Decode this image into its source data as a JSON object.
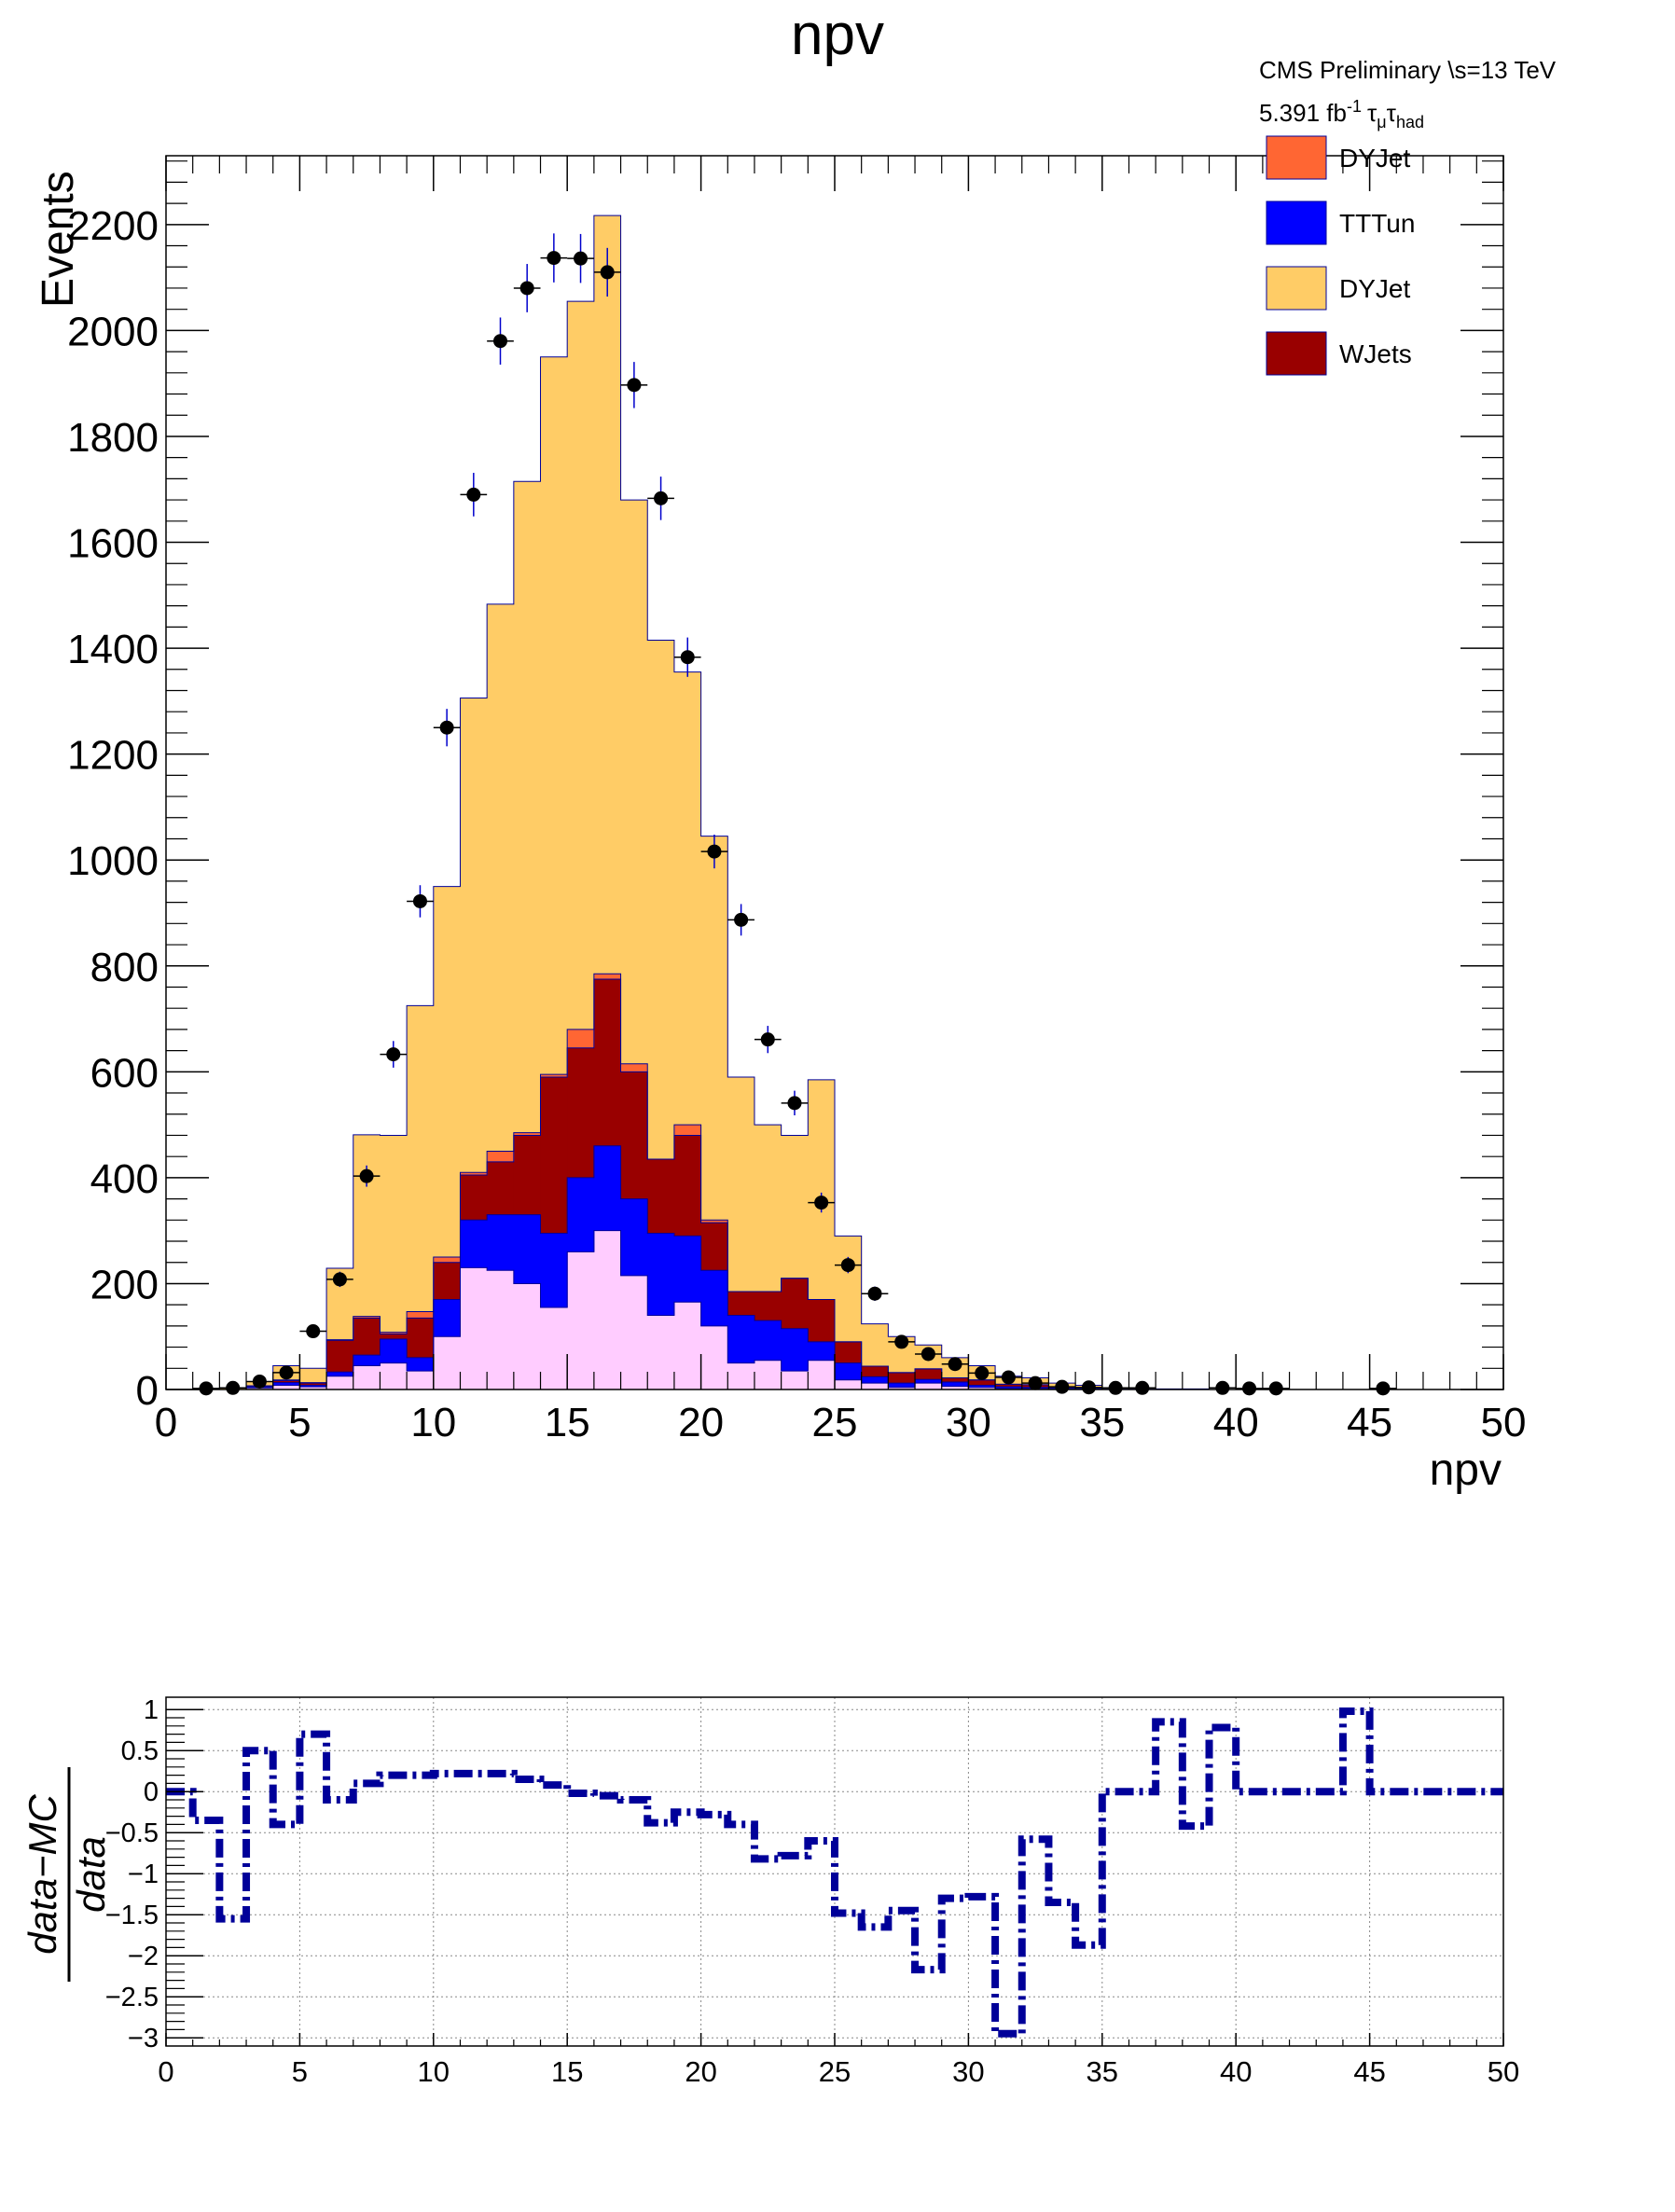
{
  "title": "npv",
  "header": {
    "line1": "CMS Preliminary  \\s=13 TeV",
    "lumi": "5.391 fb",
    "lumi_exp": "-1",
    "tau": "τ",
    "sub_mu": "μ",
    "sub_had": "had"
  },
  "legend": [
    {
      "label": "DYJet",
      "color": "#ff6633"
    },
    {
      "label": "TTTun",
      "color": "#0000ff"
    },
    {
      "label": "DYJet",
      "color": "#ffcc66"
    },
    {
      "label": "WJets",
      "color": "#990000"
    }
  ],
  "colors": {
    "dyjet_orange": "#ff6633",
    "tttun_blue": "#0000ff",
    "dyjet_yellow": "#ffcc66",
    "wjets_red": "#990000",
    "pink_component": "#ffccff",
    "ratio_line": "#000099",
    "data_errors": "#0000cc",
    "outline": "#000099"
  },
  "chart_data": [
    {
      "type": "bar",
      "title": "npv",
      "xlabel": "npv",
      "ylabel": "Events",
      "xlim": [
        0,
        50
      ],
      "ylim": [
        0,
        2330
      ],
      "bin_width": 1,
      "x_ticks": [
        0,
        5,
        10,
        15,
        20,
        25,
        30,
        35,
        40,
        45,
        50
      ],
      "y_ticks": [
        0,
        200,
        400,
        600,
        800,
        1000,
        1200,
        1400,
        1600,
        1800,
        2000,
        2200
      ],
      "bin_low_edges": [
        0,
        1,
        2,
        3,
        4,
        5,
        6,
        7,
        8,
        9,
        10,
        11,
        12,
        13,
        14,
        15,
        16,
        17,
        18,
        19,
        20,
        21,
        22,
        23,
        24,
        25,
        26,
        27,
        28,
        29,
        30,
        31,
        32,
        33,
        34,
        35,
        36,
        37,
        38,
        39,
        40,
        41,
        42,
        43,
        44,
        45,
        46,
        47,
        48,
        49
      ],
      "stack_bottom_to_top": [
        "pink",
        "TTTun",
        "WJets",
        "DYJet (orange)",
        "DYJet (yellow)"
      ],
      "series": [
        {
          "name": "pink",
          "values": [
            0,
            0,
            0,
            3,
            8,
            5,
            25,
            45,
            50,
            35,
            100,
            230,
            225,
            200,
            155,
            260,
            300,
            215,
            140,
            165,
            120,
            50,
            55,
            35,
            55,
            18,
            12,
            4,
            12,
            6,
            4,
            2,
            2,
            1,
            1,
            0,
            0,
            0,
            0,
            0,
            0,
            0,
            0,
            0,
            0,
            0,
            0,
            0,
            0,
            0
          ]
        },
        {
          "name": "TTTun",
          "values": [
            0,
            0,
            0,
            2,
            5,
            3,
            8,
            20,
            45,
            25,
            70,
            90,
            105,
            130,
            140,
            140,
            160,
            145,
            155,
            125,
            105,
            90,
            75,
            80,
            35,
            32,
            12,
            8,
            7,
            8,
            4,
            3,
            2,
            1,
            1,
            0,
            0,
            0,
            0,
            0,
            0,
            0,
            0,
            0,
            0,
            0,
            0,
            0,
            0,
            0
          ]
        },
        {
          "name": "WJets",
          "values": [
            0,
            0,
            0,
            2,
            4,
            4,
            60,
            70,
            10,
            75,
            70,
            85,
            100,
            150,
            295,
            245,
            315,
            240,
            140,
            190,
            90,
            45,
            55,
            95,
            80,
            40,
            20,
            20,
            20,
            8,
            10,
            5,
            5,
            2,
            1,
            0,
            0,
            0,
            0,
            0,
            0,
            0,
            0,
            0,
            0,
            0,
            0,
            0,
            0,
            0
          ]
        },
        {
          "name": "DYJet (orange)",
          "values": [
            0,
            0,
            0,
            0,
            1,
            1,
            1,
            3,
            3,
            12,
            10,
            5,
            20,
            5,
            5,
            35,
            10,
            15,
            0,
            20,
            5,
            0,
            0,
            0,
            0,
            0,
            0,
            0,
            0,
            0,
            0,
            0,
            0,
            0,
            0,
            0,
            0,
            0,
            0,
            0,
            0,
            0,
            0,
            0,
            0,
            0,
            0,
            0,
            0,
            0
          ]
        },
        {
          "name": "DYJet (yellow)",
          "values": [
            0,
            0,
            3,
            8,
            27,
            27,
            135,
            343,
            372,
            578,
            700,
            896,
            1033,
            1230,
            1355,
            1375,
            1432,
            1065,
            980,
            855,
            725,
            405,
            315,
            270,
            415,
            200,
            80,
            68,
            45,
            38,
            27,
            15,
            13,
            8,
            5,
            2,
            2,
            1,
            1,
            0,
            0,
            0,
            0,
            0,
            0,
            0,
            0,
            0,
            0,
            0,
            0
          ]
        },
        {
          "name": "data",
          "x": [
            1.5,
            2.5,
            3.5,
            4.5,
            5.5,
            6.5,
            7.5,
            8.5,
            9.5,
            10.5,
            11.5,
            12.5,
            13.5,
            14.5,
            15.5,
            16.5,
            17.5,
            18.5,
            19.5,
            20.5,
            21.5,
            22.5,
            23.5,
            24.5,
            25.5,
            26.5,
            27.5,
            28.5,
            29.5,
            30.5,
            31.5,
            32.5,
            33.5,
            34.5,
            35.5,
            36.5,
            39.5,
            40.5,
            41.5,
            45.5
          ],
          "values": [
            2,
            3,
            15,
            32,
            110,
            208,
            403,
            633,
            922,
            1250,
            1690,
            1980,
            2080,
            2137,
            2136,
            2110,
            1897,
            1683,
            1383,
            1016,
            887,
            661,
            541,
            353,
            235,
            181,
            90,
            67,
            48,
            31,
            23,
            12,
            5,
            4,
            3,
            3,
            3,
            2,
            2,
            2
          ]
        }
      ]
    },
    {
      "type": "line",
      "title": "",
      "xlabel": "",
      "ylabel_numerator": "data−MC",
      "ylabel_denominator": "data",
      "xlim": [
        0,
        50
      ],
      "ylim": [
        -3.1,
        1.15
      ],
      "x_ticks": [
        0,
        5,
        10,
        15,
        20,
        25,
        30,
        35,
        40,
        45,
        50
      ],
      "y_ticks": [
        1,
        0.5,
        0,
        -0.5,
        -1,
        -1.5,
        -2,
        -2.5,
        -3
      ],
      "y_tick_labels": [
        "1",
        "0.5",
        "0",
        "−0.5",
        "−1",
        "−1.5",
        "−2",
        "−2.5",
        "−3"
      ],
      "grid": true,
      "bin_low_edges": [
        0,
        1,
        2,
        3,
        4,
        5,
        6,
        7,
        8,
        9,
        10,
        11,
        12,
        13,
        14,
        15,
        16,
        17,
        18,
        19,
        20,
        21,
        22,
        23,
        24,
        25,
        26,
        27,
        28,
        29,
        30,
        31,
        32,
        33,
        34,
        35,
        36,
        37,
        38,
        39,
        40,
        41,
        42,
        43,
        44,
        45,
        46,
        47,
        48,
        49
      ],
      "values": [
        0,
        -0.35,
        -1.55,
        0.5,
        -0.4,
        0.7,
        -0.1,
        0.1,
        0.2,
        0.2,
        0.22,
        0.22,
        0.22,
        0.15,
        0.08,
        -0.02,
        -0.05,
        -0.1,
        -0.38,
        -0.25,
        -0.28,
        -0.4,
        -0.82,
        -0.78,
        -0.6,
        -1.48,
        -1.65,
        -1.45,
        -2.17,
        -1.3,
        -1.28,
        -2.95,
        -0.58,
        -1.35,
        -1.87,
        0,
        0,
        0.85,
        -0.42,
        0.78,
        0,
        0,
        0,
        0,
        0.98,
        0,
        0,
        0,
        0,
        0
      ]
    }
  ]
}
